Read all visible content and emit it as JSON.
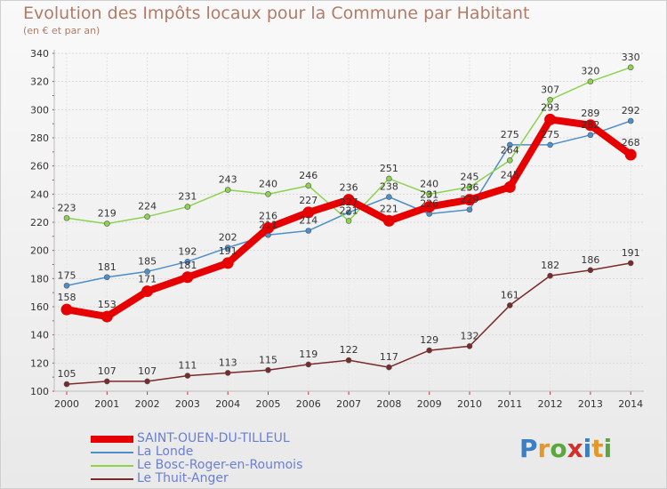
{
  "title": "Evolution des Impôts locaux pour la Commune par Habitant",
  "subtitle": "(en € et par an)",
  "logo_text": "Proxiti",
  "chart_data": {
    "type": "line",
    "title": "Evolution des Impôts locaux pour la Commune par Habitant",
    "subtitle": "(en € et par an)",
    "x": [
      "2000",
      "2001",
      "2002",
      "2003",
      "2004",
      "2005",
      "2006",
      "2007",
      "2008",
      "2009",
      "2010",
      "2011",
      "2012",
      "2013",
      "2014"
    ],
    "ylim": [
      100,
      340
    ],
    "yticks": [
      100,
      120,
      140,
      160,
      180,
      200,
      220,
      240,
      260,
      280,
      300,
      320,
      340
    ],
    "grid": true,
    "legend_position": "bottom-left",
    "series": [
      {
        "name": "SAINT-OUEN-DU-TILLEUL",
        "color": "#e60000",
        "emphasis": true,
        "values": [
          158,
          153,
          171,
          181,
          191,
          216,
          227,
          236,
          221,
          231,
          236,
          245,
          293,
          289,
          268
        ]
      },
      {
        "name": "La Londe",
        "color": "#4f8fc9",
        "values": [
          175,
          181,
          185,
          192,
          202,
          211,
          214,
          227,
          238,
          226,
          229,
          275,
          275,
          282,
          292
        ]
      },
      {
        "name": "Le Bosc-Roger-en-Roumois",
        "color": "#8bd34e",
        "values": [
          223,
          219,
          224,
          231,
          243,
          240,
          246,
          221,
          251,
          240,
          245,
          264,
          307,
          320,
          330
        ]
      },
      {
        "name": "Le Thuit-Anger",
        "color": "#7a2a2a",
        "values": [
          105,
          107,
          107,
          111,
          113,
          115,
          119,
          122,
          117,
          129,
          132,
          161,
          182,
          186,
          191
        ]
      }
    ]
  }
}
